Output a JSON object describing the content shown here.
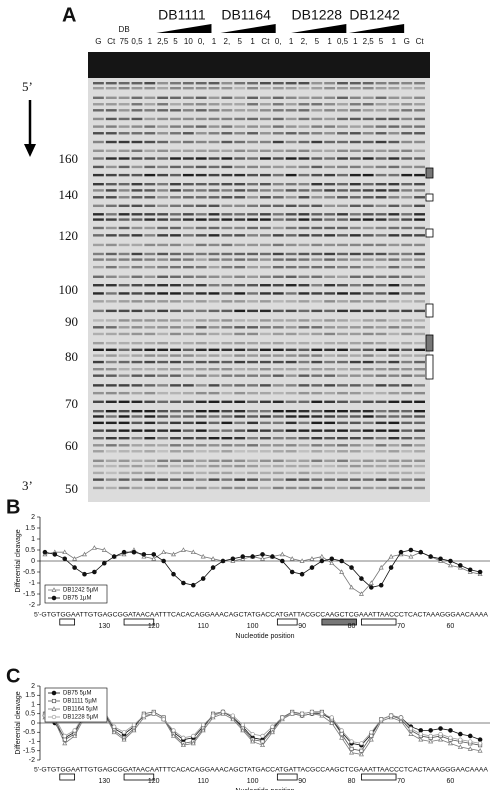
{
  "panels": {
    "a": "A",
    "b": "B",
    "c": "C"
  },
  "gel": {
    "groups": [
      "DB1111",
      "DB1164",
      "DB1228",
      "DB1242"
    ],
    "lanes": [
      "G",
      "Ct",
      "75",
      "0,5",
      "1",
      "2,5",
      "5",
      "10",
      "0,",
      "1",
      "2,",
      "5",
      "1",
      "Ct",
      "0,",
      "1",
      "2,",
      "5",
      "1",
      "0,5",
      "1",
      "2,5",
      "5",
      "1",
      "G",
      "Ct"
    ],
    "db_label": "DB",
    "five_prime": "5’",
    "three_prime": "3’",
    "markers": [
      "160",
      "140",
      "120",
      "100",
      "90",
      "80",
      "70",
      "60",
      "50"
    ]
  },
  "chart_data": [
    {
      "type": "line",
      "ylabel": "Differential cleavage",
      "xlabel": "Nucleotide position",
      "sequence": "5'-GTGTGGAATTGTGAGCGGATAACAATTTCACACAGGAAACAGCTATGACCATGATTACGCCAAGCTCGAAATTAACCCTCACTAAAGGGAACAAAA",
      "xlim": [
        143,
        52
      ],
      "xticks": [
        130,
        120,
        110,
        100,
        90,
        80,
        70,
        60
      ],
      "ylim": [
        -2,
        2
      ],
      "yticks": [
        -2,
        -1.5,
        -1,
        -0.5,
        0,
        0.5,
        1,
        1.5,
        2
      ],
      "legend": "lower left",
      "x": [
        142,
        140,
        138,
        136,
        134,
        132,
        130,
        128,
        126,
        124,
        122,
        120,
        118,
        116,
        114,
        112,
        110,
        108,
        106,
        104,
        102,
        100,
        98,
        96,
        94,
        92,
        90,
        88,
        86,
        84,
        82,
        80,
        78,
        76,
        74,
        72,
        70,
        68,
        66,
        64,
        62,
        60,
        58,
        56,
        54
      ],
      "series": [
        {
          "name": "DB1242 5µM",
          "color": "#777777",
          "marker": "open-triangle",
          "values": [
            0.3,
            0.4,
            0.4,
            0.1,
            0.3,
            0.6,
            0.5,
            0.2,
            0.3,
            0.5,
            0.2,
            0.1,
            0.4,
            0.3,
            0.5,
            0.4,
            0.2,
            0.1,
            0,
            0,
            0.1,
            0.2,
            0.1,
            0.2,
            0.3,
            0.1,
            0,
            0.1,
            0.2,
            -0.1,
            -0.5,
            -1.2,
            -1.5,
            -1.0,
            -0.3,
            0.2,
            0.3,
            0.2,
            0.4,
            0.2,
            0,
            -0.2,
            -0.3,
            -0.5,
            -0.6
          ]
        },
        {
          "name": "DB75 1µM",
          "color": "#111111",
          "marker": "filled-circle",
          "values": [
            0.4,
            0.3,
            0.1,
            -0.3,
            -0.6,
            -0.5,
            -0.1,
            0.2,
            0.4,
            0.4,
            0.3,
            0.3,
            0,
            -0.6,
            -1.0,
            -1.1,
            -0.8,
            -0.3,
            0,
            0.1,
            0.2,
            0.2,
            0.3,
            0.2,
            0,
            -0.5,
            -0.6,
            -0.3,
            0,
            0.1,
            0,
            -0.3,
            -0.8,
            -1.2,
            -1.1,
            -0.3,
            0.4,
            0.5,
            0.4,
            0.2,
            0.1,
            0,
            -0.2,
            -0.4,
            -0.5
          ]
        }
      ]
    },
    {
      "type": "line",
      "ylabel": "Differential cleavage",
      "xlabel": "Nucleotide position",
      "sequence": "5'-GTGTGGAATTGTGAGCGGATAACAATTTCACACAGGAAACAGCTATGACCATGATTACGCCAAGCTCGAAATTAACCCTCACTAAAGGGAACAAAA",
      "xlim": [
        143,
        52
      ],
      "xticks": [
        130,
        120,
        110,
        100,
        90,
        80,
        70,
        60
      ],
      "ylim": [
        -2,
        2
      ],
      "yticks": [
        -2,
        -1.5,
        -1,
        -0.5,
        0,
        0.5,
        1,
        1.5,
        2
      ],
      "legend": "upper left",
      "x": [
        142,
        140,
        138,
        136,
        134,
        132,
        130,
        128,
        126,
        124,
        122,
        120,
        118,
        116,
        114,
        112,
        110,
        108,
        106,
        104,
        102,
        100,
        98,
        96,
        94,
        92,
        90,
        88,
        86,
        84,
        82,
        80,
        78,
        76,
        74,
        72,
        70,
        68,
        66,
        64,
        62,
        60,
        58,
        56,
        54
      ],
      "series": [
        {
          "name": "DB75 5µM",
          "color": "#111111",
          "marker": "filled-circle",
          "values": [
            0.4,
            0,
            -0.8,
            -0.5,
            0.4,
            0.7,
            0.5,
            -0.3,
            -0.6,
            -0.2,
            0.4,
            0.5,
            0.2,
            -0.5,
            -0.9,
            -0.8,
            -0.2,
            0.4,
            0.6,
            0.3,
            -0.2,
            -0.8,
            -0.9,
            -0.3,
            0.3,
            0.5,
            0.4,
            0.5,
            0.5,
            0.2,
            -0.5,
            -1.1,
            -1.2,
            -0.6,
            0.2,
            0.4,
            0.3,
            -0.2,
            -0.4,
            -0.4,
            -0.3,
            -0.4,
            -0.6,
            -0.7,
            -0.9
          ]
        },
        {
          "name": "DB1111 5µM",
          "color": "#555555",
          "marker": "open-square",
          "values": [
            0.5,
            0.2,
            -0.9,
            -0.6,
            0.5,
            0.8,
            0.6,
            -0.4,
            -0.8,
            -0.3,
            0.5,
            0.6,
            0.3,
            -0.6,
            -1.1,
            -1.0,
            -0.3,
            0.5,
            0.6,
            0.3,
            -0.3,
            -0.9,
            -1.0,
            -0.4,
            0.3,
            0.6,
            0.5,
            0.6,
            0.6,
            0.2,
            -0.6,
            -1.4,
            -1.5,
            -0.7,
            0.2,
            0.4,
            0.2,
            -0.4,
            -0.7,
            -0.8,
            -0.7,
            -0.9,
            -1.0,
            -1.1,
            -1.2
          ]
        },
        {
          "name": "DB1164 5µM",
          "color": "#777777",
          "marker": "open-triangle",
          "values": [
            0.3,
            0.1,
            -1.1,
            -0.7,
            0.3,
            0.6,
            0.5,
            -0.5,
            -0.9,
            -0.4,
            0.3,
            0.5,
            0.2,
            -0.7,
            -1.2,
            -1.1,
            -0.4,
            0.3,
            0.5,
            0.2,
            -0.4,
            -1.0,
            -1.2,
            -0.5,
            0.2,
            0.5,
            0.4,
            0.5,
            0.4,
            0,
            -0.8,
            -1.6,
            -1.7,
            -0.9,
            0.1,
            0.3,
            0.1,
            -0.6,
            -0.9,
            -1.0,
            -0.9,
            -1.1,
            -1.3,
            -1.4,
            -1.5
          ]
        },
        {
          "name": "DB1228 5µM",
          "color": "#999999",
          "marker": "open-circle",
          "values": [
            0.4,
            0.3,
            -0.7,
            -0.4,
            0.5,
            0.7,
            0.6,
            -0.2,
            -0.5,
            -0.1,
            0.4,
            0.5,
            0.2,
            -0.4,
            -0.8,
            -0.7,
            -0.1,
            0.4,
            0.6,
            0.4,
            -0.1,
            -0.6,
            -0.7,
            -0.2,
            0.3,
            0.5,
            0.5,
            0.6,
            0.5,
            0.3,
            -0.4,
            -1.0,
            -1.1,
            -0.5,
            0.2,
            0.4,
            0.3,
            -0.3,
            -0.6,
            -0.7,
            -0.6,
            -0.8,
            -0.9,
            -1.0,
            -1.1
          ]
        }
      ]
    }
  ]
}
